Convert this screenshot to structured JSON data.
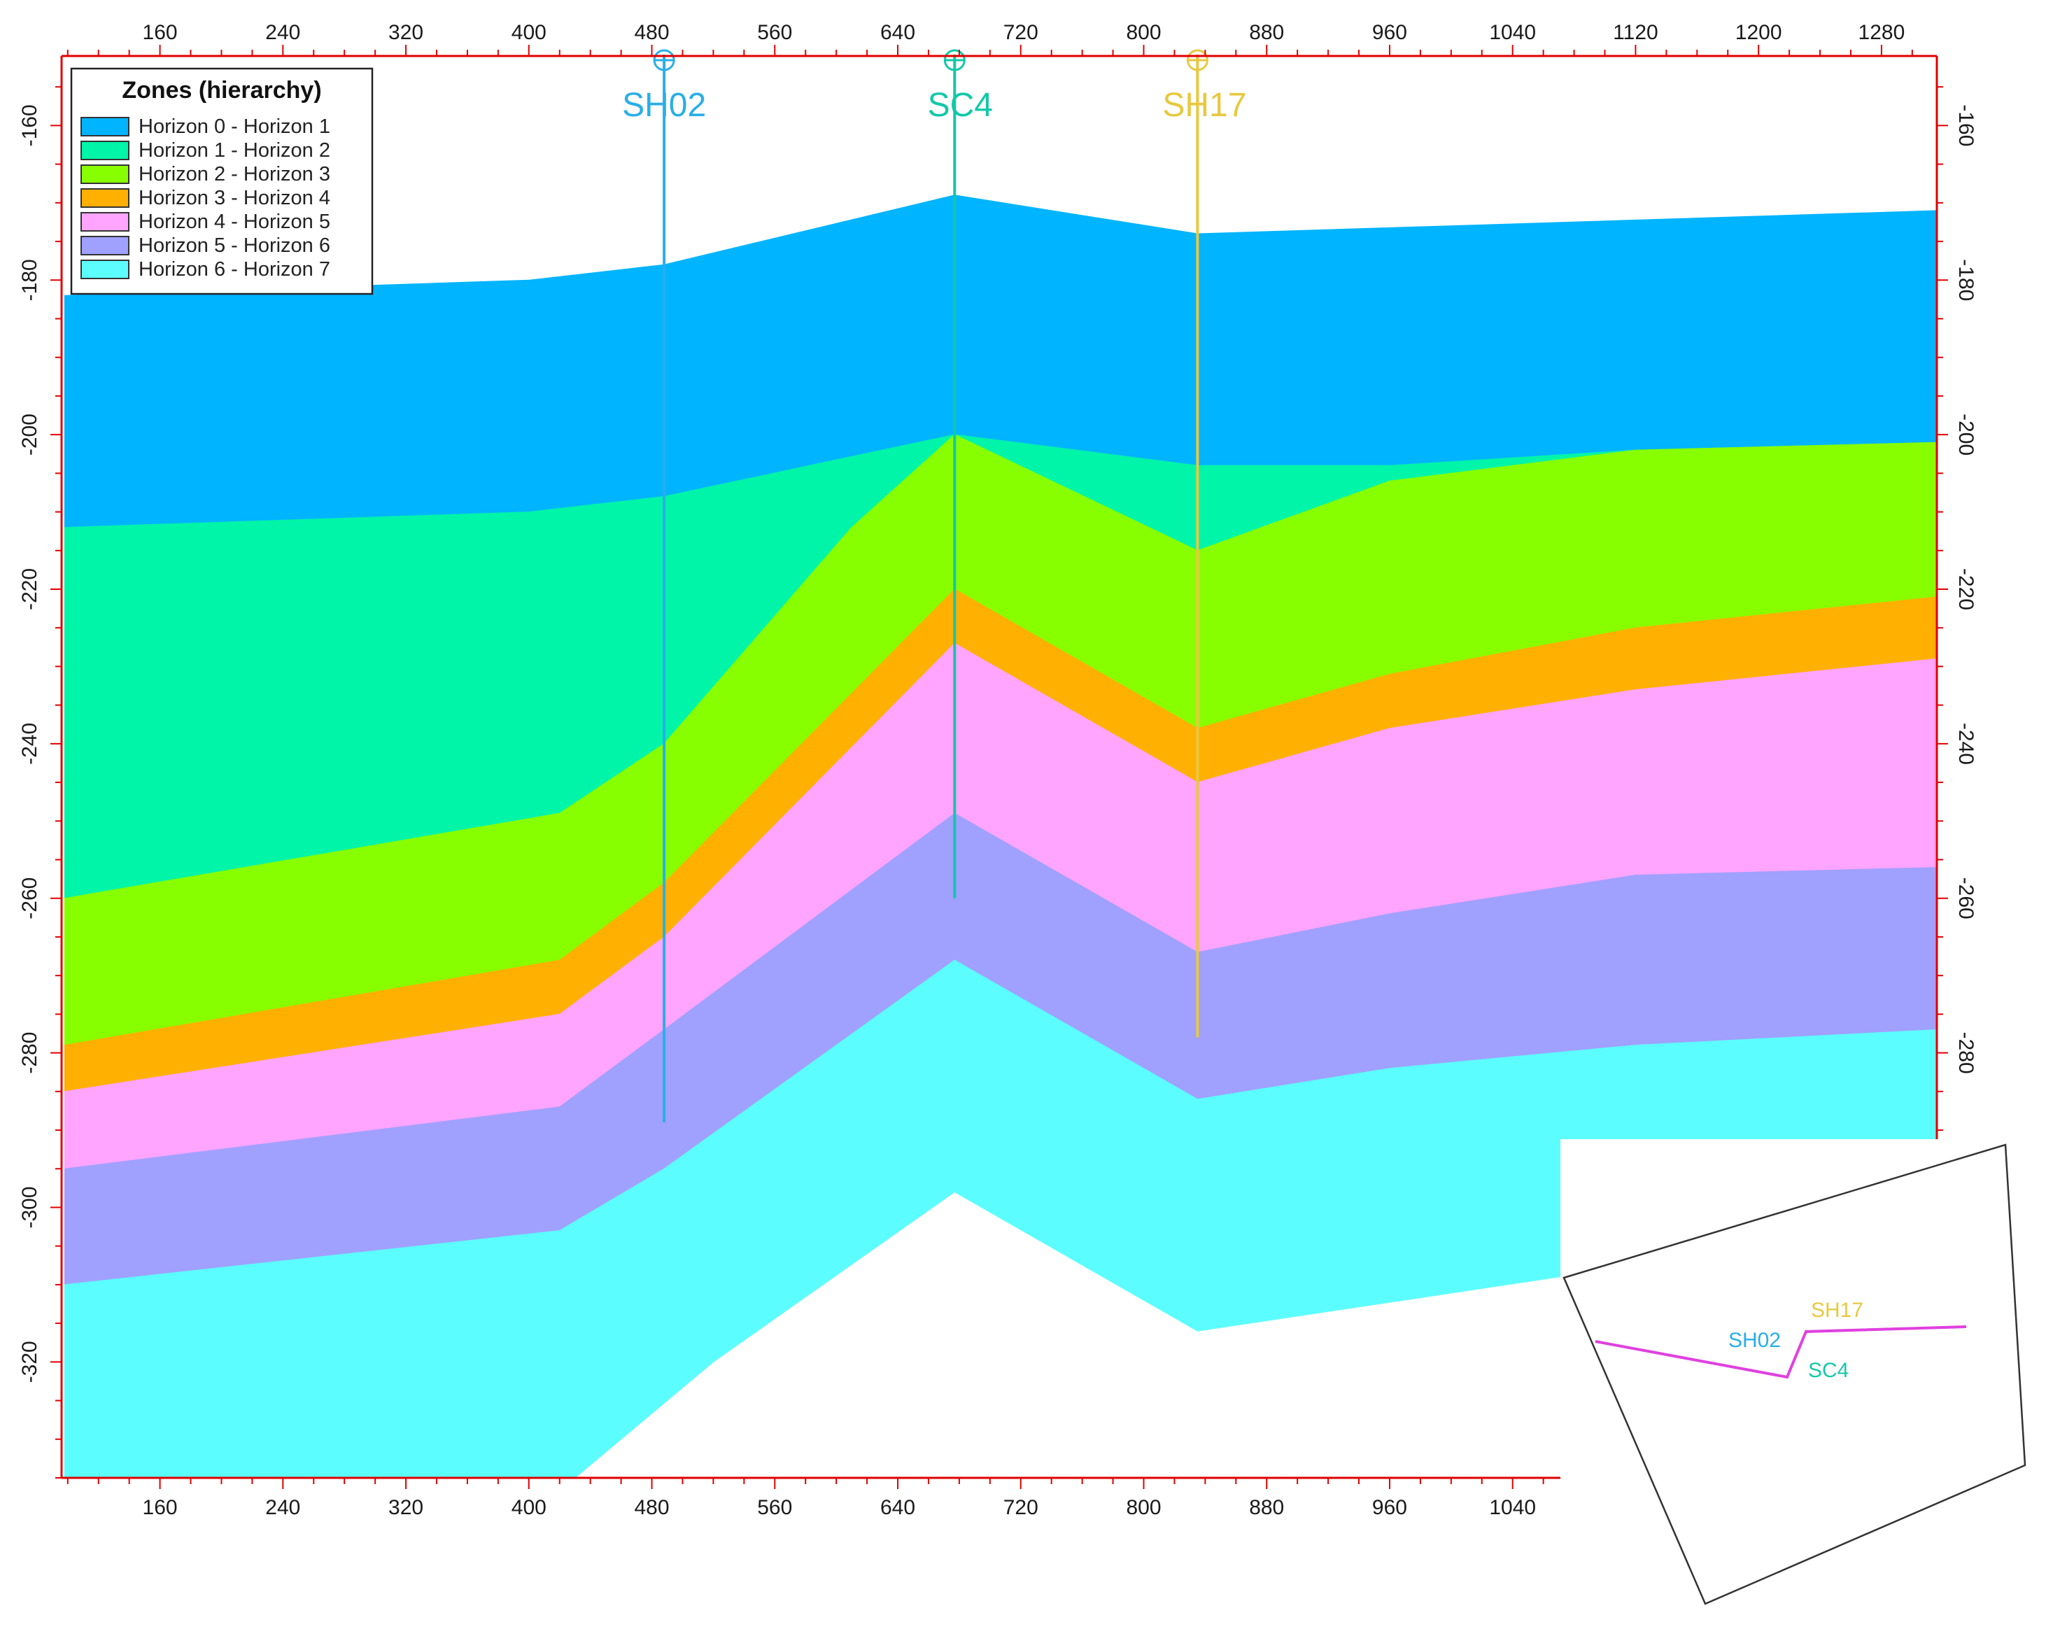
{
  "chart_data": {
    "type": "area",
    "title": "",
    "xlabel": "",
    "ylabel": "",
    "xlim": [
      96,
      1316
    ],
    "ylim": [
      -335,
      -151
    ],
    "y_right_axis": true,
    "x_ticks": [
      160,
      240,
      320,
      400,
      480,
      560,
      640,
      720,
      800,
      880,
      960,
      1040,
      1120,
      1200,
      1280
    ],
    "x_ticks_bottom": [
      160,
      240,
      320,
      400,
      480,
      560,
      640,
      720,
      800,
      880,
      960,
      1040
    ],
    "y_ticks": [
      -160,
      -180,
      -200,
      -220,
      -240,
      -260,
      -280,
      -300,
      -320
    ],
    "y_ticks_right": [
      -160,
      -180,
      -200,
      -220,
      -240,
      -260,
      -280
    ],
    "legend": {
      "title": "Zones (hierarchy)",
      "position": "top-left"
    },
    "horizons": [
      {
        "name": "Horizon 0",
        "points": [
          [
            98,
            -182
          ],
          [
            400,
            -180
          ],
          [
            488,
            -178
          ],
          [
            677,
            -169
          ],
          [
            835,
            -174
          ],
          [
            1316,
            -171
          ]
        ]
      },
      {
        "name": "Horizon 1",
        "points": [
          [
            98,
            -212
          ],
          [
            400,
            -210
          ],
          [
            488,
            -208
          ],
          [
            677,
            -200
          ],
          [
            835,
            -204
          ],
          [
            960,
            -204
          ],
          [
            1120,
            -202
          ],
          [
            1316,
            -201
          ]
        ]
      },
      {
        "name": "Horizon 2",
        "points": [
          [
            98,
            -260
          ],
          [
            420,
            -249
          ],
          [
            488,
            -240
          ],
          [
            610,
            -212
          ],
          [
            677,
            -200
          ],
          [
            835,
            -215
          ],
          [
            960,
            -206
          ],
          [
            1120,
            -202
          ],
          [
            1316,
            -201
          ]
        ]
      },
      {
        "name": "Horizon 3",
        "points": [
          [
            98,
            -279
          ],
          [
            420,
            -268
          ],
          [
            488,
            -258
          ],
          [
            677,
            -220
          ],
          [
            835,
            -238
          ],
          [
            960,
            -231
          ],
          [
            1120,
            -225
          ],
          [
            1316,
            -221
          ]
        ]
      },
      {
        "name": "Horizon 4",
        "points": [
          [
            98,
            -285
          ],
          [
            420,
            -275
          ],
          [
            488,
            -265
          ],
          [
            677,
            -227
          ],
          [
            835,
            -245
          ],
          [
            960,
            -238
          ],
          [
            1120,
            -233
          ],
          [
            1316,
            -229
          ]
        ]
      },
      {
        "name": "Horizon 5",
        "points": [
          [
            98,
            -295
          ],
          [
            420,
            -287
          ],
          [
            488,
            -277
          ],
          [
            677,
            -249
          ],
          [
            835,
            -267
          ],
          [
            960,
            -262
          ],
          [
            1120,
            -257
          ],
          [
            1316,
            -256
          ]
        ]
      },
      {
        "name": "Horizon 6",
        "points": [
          [
            98,
            -310
          ],
          [
            420,
            -303
          ],
          [
            488,
            -295
          ],
          [
            677,
            -268
          ],
          [
            835,
            -286
          ],
          [
            960,
            -282
          ],
          [
            1120,
            -279
          ],
          [
            1316,
            -277
          ]
        ]
      },
      {
        "name": "Horizon 7",
        "points": [
          [
            98,
            -335
          ],
          [
            430,
            -335
          ],
          [
            520,
            -320
          ],
          [
            677,
            -298
          ],
          [
            835,
            -316
          ],
          [
            1070,
            -309
          ],
          [
            1316,
            -305
          ]
        ]
      }
    ],
    "zones": [
      {
        "name": "Horizon 0 - Horizon 1",
        "color": "#00b4ff",
        "top": 0,
        "bottom": 1
      },
      {
        "name": "Horizon 1 - Horizon 2",
        "color": "#00f5a8",
        "top": 1,
        "bottom": 2
      },
      {
        "name": "Horizon 2 - Horizon 3",
        "color": "#88ff00",
        "top": 2,
        "bottom": 3
      },
      {
        "name": "Horizon 3 - Horizon 4",
        "color": "#ffb000",
        "top": 3,
        "bottom": 4
      },
      {
        "name": "Horizon 4 - Horizon 5",
        "color": "#ffa4ff",
        "top": 4,
        "bottom": 5
      },
      {
        "name": "Horizon 5 - Horizon 6",
        "color": "#a0a0ff",
        "top": 5,
        "bottom": 6
      },
      {
        "name": "Horizon 6 - Horizon 7",
        "color": "#5cfdff",
        "top": 6,
        "bottom": 7
      }
    ],
    "wells": [
      {
        "name": "SH02",
        "x": 488,
        "y_top": -151,
        "y_bottom": -289,
        "color": "#2aaee8"
      },
      {
        "name": "SC4",
        "x": 677,
        "y_top": -151,
        "y_bottom": -260,
        "color": "#12c8a8"
      },
      {
        "name": "SH17",
        "x": 835,
        "y_top": -151,
        "y_bottom": -278,
        "color": "#e8c840"
      }
    ]
  },
  "inset_map": {
    "labels": [
      {
        "text": "SH02",
        "color": "#2aaee8"
      },
      {
        "text": "SC4",
        "color": "#12c8a8"
      },
      {
        "text": "SH17",
        "color": "#e8c840"
      }
    ],
    "line_color": "#e040e0"
  }
}
